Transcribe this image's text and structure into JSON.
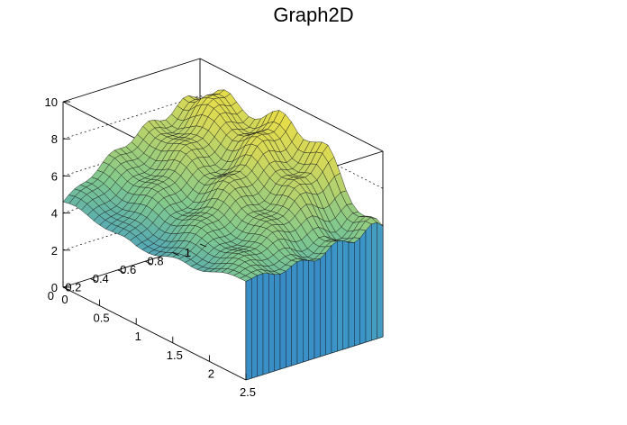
{
  "chart_data": {
    "type": "surface",
    "title": "Graph2D",
    "x_ticks": [
      "0",
      "0.5",
      "1",
      "1.5",
      "2",
      "2.5"
    ],
    "y_ticks": [
      "0",
      "0.2",
      "0.4",
      "0.6",
      "0.8",
      "1"
    ],
    "z_ticks": [
      "0",
      "2",
      "4",
      "6",
      "8",
      "10"
    ],
    "xlim": [
      0,
      2.5
    ],
    "ylim": [
      0,
      1
    ],
    "zlim": [
      0,
      10
    ],
    "grid": true,
    "palette": "blue-green-yellow",
    "z_front_edge_y0": [
      [
        0.0,
        4.6
      ],
      [
        0.25,
        4.5
      ],
      [
        0.5,
        4.4
      ],
      [
        0.75,
        4.2
      ],
      [
        1.0,
        4.1
      ],
      [
        1.25,
        4.3
      ],
      [
        1.5,
        4.5
      ],
      [
        1.75,
        4.7
      ],
      [
        2.0,
        5.0
      ],
      [
        2.25,
        5.2
      ],
      [
        2.5,
        5.5
      ]
    ],
    "z_back_edge_y1": [
      [
        0.0,
        8.6
      ],
      [
        0.25,
        9.0
      ],
      [
        0.5,
        8.7
      ],
      [
        0.75,
        8.9
      ],
      [
        1.0,
        8.8
      ],
      [
        1.25,
        8.9
      ],
      [
        1.5,
        8.6
      ],
      [
        1.75,
        8.0
      ],
      [
        2.0,
        6.8
      ],
      [
        2.25,
        6.0
      ],
      [
        2.5,
        5.5
      ]
    ]
  },
  "colors": {
    "low": "#1f3fb0",
    "mid": "#7fc88f",
    "high": "#f8e23a"
  }
}
